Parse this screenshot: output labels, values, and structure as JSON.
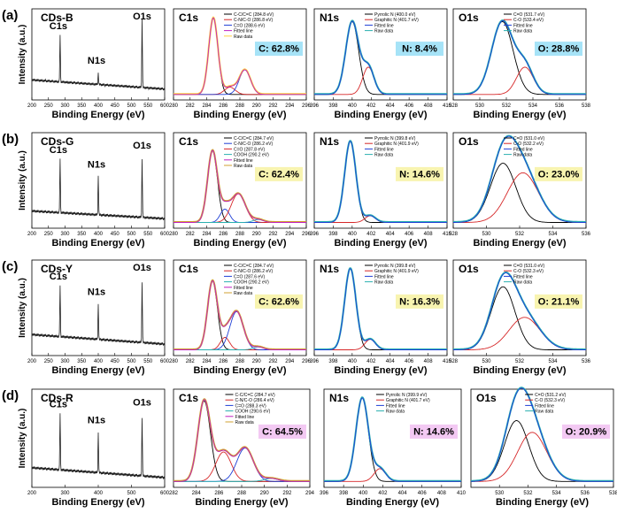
{
  "chart_data": [
    {
      "row_label": "(a)",
      "sample": "CDs-B",
      "accent": "#a6e3f7",
      "panels": [
        {
          "type": "line",
          "kind": "survey",
          "xlabel": "Binding Energy (eV)",
          "ylabel": "Intensity (a.u.)",
          "xlim": [
            200,
            600
          ],
          "xticks": [
            "200",
            "250",
            "300",
            "350",
            "400",
            "450",
            "500",
            "550",
            "600"
          ],
          "survey": {
            "base": [
              0.22,
              0.12
            ],
            "peaks": [
              {
                "center": 285,
                "height": 0.5,
                "label": "C1s"
              },
              {
                "center": 400,
                "height": 0.12,
                "label": "N1s"
              },
              {
                "center": 532,
                "height": 0.74,
                "label": "O1s"
              }
            ]
          }
        },
        {
          "type": "line",
          "kind": "fit",
          "title": "C1s",
          "xlabel": "Binding Energy (eV)",
          "xlim": [
            280,
            296
          ],
          "xticks": [
            "280",
            "282",
            "284",
            "286",
            "288",
            "290",
            "292",
            "294",
            "296"
          ],
          "series": [
            {
              "name": "C-C/C=C (284.8 eV)",
              "color": "#000000",
              "center": 284.8,
              "height": 0.84,
              "fwhm": 1.3
            },
            {
              "name": "C-N/C-O (286.8 eV)",
              "color": "#d62728",
              "center": 286.8,
              "height": 0.08,
              "fwhm": 1.5
            },
            {
              "name": "C=O (288.6 eV)",
              "color": "#1f3fd6",
              "center": 288.6,
              "height": 0.27,
              "fwhm": 1.6
            }
          ],
          "fitted_line": {
            "name": "Fitted line",
            "color": "#c020c0"
          },
          "raw_data": {
            "name": "Raw data",
            "color": "#ffd040"
          },
          "annotation": "C: 62.8%"
        },
        {
          "type": "line",
          "kind": "fit",
          "title": "N1s",
          "xlabel": "Binding Energy (eV)",
          "xlim": [
            396,
            410
          ],
          "xticks": [
            "396",
            "398",
            "400",
            "402",
            "404",
            "406",
            "408",
            "410"
          ],
          "series": [
            {
              "name": "Pyrrolic N (400.0 eV)",
              "color": "#000000",
              "center": 400.0,
              "height": 0.8,
              "fwhm": 1.6
            },
            {
              "name": "Graphitic N (401.7 eV)",
              "color": "#d62728",
              "center": 401.7,
              "height": 0.3,
              "fwhm": 1.4
            }
          ],
          "fitted_line": {
            "name": "Fitted line",
            "color": "#1f3fd6"
          },
          "raw_data": {
            "name": "Raw data",
            "color": "#2ab0b0"
          },
          "annotation": "N: 8.4%"
        },
        {
          "type": "line",
          "kind": "fit",
          "title": "O1s",
          "xlabel": "Binding Energy (eV)",
          "xlim": [
            528,
            538
          ],
          "xticks": [
            "528",
            "530",
            "532",
            "534",
            "536",
            "538"
          ],
          "series": [
            {
              "name": "C=O (531.7 eV)",
              "color": "#000000",
              "center": 531.7,
              "height": 0.8,
              "fwhm": 1.9
            },
            {
              "name": "C-O (533.4 eV)",
              "color": "#d62728",
              "center": 533.4,
              "height": 0.3,
              "fwhm": 1.5
            }
          ],
          "fitted_line": {
            "name": "Fitted line",
            "color": "#1f3fd6"
          },
          "raw_data": {
            "name": "Raw data",
            "color": "#2ab0b0"
          },
          "annotation": "O: 28.8%"
        }
      ]
    },
    {
      "row_label": "(b)",
      "sample": "CDs-G",
      "accent": "#f8f4b0",
      "panels": [
        {
          "type": "line",
          "kind": "survey",
          "xlabel": "Binding Energy (eV)",
          "ylabel": "Intensity (a.u.)",
          "xlim": [
            200,
            600
          ],
          "xticks": [
            "200",
            "250",
            "300",
            "350",
            "400",
            "450",
            "500",
            "550",
            "600"
          ],
          "survey": {
            "base": [
              0.18,
              0.1
            ],
            "peaks": [
              {
                "center": 285,
                "height": 0.55,
                "label": "C1s"
              },
              {
                "center": 400,
                "height": 0.4,
                "label": "N1s"
              },
              {
                "center": 532,
                "height": 0.6,
                "label": "O1s"
              }
            ]
          }
        },
        {
          "type": "line",
          "kind": "fit",
          "title": "C1s",
          "xlabel": "Binding Energy (eV)",
          "xlim": [
            280,
            296
          ],
          "xticks": [
            "280",
            "282",
            "284",
            "286",
            "288",
            "290",
            "292",
            "294",
            "296"
          ],
          "series": [
            {
              "name": "C-C/C=C (284.7 eV)",
              "color": "#000000",
              "center": 284.7,
              "height": 0.75,
              "fwhm": 1.4
            },
            {
              "name": "C-N/C-O (286.2 eV)",
              "color": "#1f3fd6",
              "center": 286.2,
              "height": 0.14,
              "fwhm": 1.3
            },
            {
              "name": "C=O (287.8 eV)",
              "color": "#d62728",
              "center": 287.8,
              "height": 0.3,
              "fwhm": 2.0
            },
            {
              "name": "COOH (290.2 eV)",
              "color": "#2ab0b0",
              "center": 290.2,
              "height": 0.03,
              "fwhm": 1.5
            }
          ],
          "fitted_line": {
            "name": "Fitted line",
            "color": "#c020c0"
          },
          "raw_data": {
            "name": "Raw data",
            "color": "#d0a030"
          },
          "annotation": "C: 62.4%"
        },
        {
          "type": "line",
          "kind": "fit",
          "title": "N1s",
          "xlabel": "Binding Energy (eV)",
          "xlim": [
            396,
            410
          ],
          "xticks": [
            "396",
            "398",
            "400",
            "402",
            "404",
            "406",
            "408",
            "410"
          ],
          "series": [
            {
              "name": "Pyrrolic N (399.8 eV)",
              "color": "#000000",
              "center": 399.8,
              "height": 0.85,
              "fwhm": 1.4
            },
            {
              "name": "Graphitic N (401.9 eV)",
              "color": "#d62728",
              "center": 401.9,
              "height": 0.07,
              "fwhm": 1.3
            }
          ],
          "fitted_line": {
            "name": "Fitted line",
            "color": "#1f3fd6"
          },
          "raw_data": {
            "name": "Raw data",
            "color": "#2ab0b0"
          },
          "annotation": "N: 14.6%"
        },
        {
          "type": "line",
          "kind": "fit",
          "title": "O1s",
          "xlabel": "Binding Energy (eV)",
          "xlim": [
            528,
            536
          ],
          "xticks": [
            "528",
            "530",
            "532",
            "534",
            "536"
          ],
          "series": [
            {
              "name": "C=O (531.0 eV)",
              "color": "#000000",
              "center": 531.0,
              "height": 0.62,
              "fwhm": 1.8
            },
            {
              "name": "C-O (532.2 eV)",
              "color": "#d62728",
              "center": 532.2,
              "height": 0.52,
              "fwhm": 2.2
            }
          ],
          "fitted_line": {
            "name": "Fitted line",
            "color": "#1f3fd6"
          },
          "raw_data": {
            "name": "Raw data",
            "color": "#2ab0b0"
          },
          "annotation": "O: 23.0%"
        }
      ]
    },
    {
      "row_label": "(c)",
      "sample": "CDs-Y",
      "accent": "#f8f4b0",
      "panels": [
        {
          "type": "line",
          "kind": "survey",
          "xlabel": "Binding Energy (eV)",
          "ylabel": "Intensity (a.u.)",
          "xlim": [
            200,
            600
          ],
          "xticks": [
            "200",
            "250",
            "300",
            "350",
            "400",
            "450",
            "500",
            "550",
            "600"
          ],
          "survey": {
            "base": [
              0.22,
              0.12
            ],
            "peaks": [
              {
                "center": 285,
                "height": 0.52,
                "label": "C1s"
              },
              {
                "center": 400,
                "height": 0.36,
                "label": "N1s"
              },
              {
                "center": 532,
                "height": 0.62,
                "label": "O1s"
              }
            ]
          }
        },
        {
          "type": "line",
          "kind": "fit",
          "title": "C1s",
          "xlabel": "Binding Energy (eV)",
          "xlim": [
            280,
            296
          ],
          "xticks": [
            "280",
            "282",
            "284",
            "286",
            "288",
            "290",
            "292",
            "294",
            "296"
          ],
          "series": [
            {
              "name": "C-C/C=C (284.7 eV)",
              "color": "#000000",
              "center": 284.7,
              "height": 0.72,
              "fwhm": 1.4
            },
            {
              "name": "C-N/C-O (286.2 eV)",
              "color": "#d62728",
              "center": 286.2,
              "height": 0.13,
              "fwhm": 1.3
            },
            {
              "name": "C=O (287.6 eV)",
              "color": "#1f3fd6",
              "center": 287.6,
              "height": 0.4,
              "fwhm": 1.9
            },
            {
              "name": "COOH (290.2 eV)",
              "color": "#2ab0b0",
              "center": 290.2,
              "height": 0.03,
              "fwhm": 1.5
            }
          ],
          "fitted_line": {
            "name": "Fitted line",
            "color": "#c020c0"
          },
          "raw_data": {
            "name": "Raw data",
            "color": "#d0a030"
          },
          "annotation": "C: 62.6%"
        },
        {
          "type": "line",
          "kind": "fit",
          "title": "N1s",
          "xlabel": "Binding Energy (eV)",
          "xlim": [
            396,
            410
          ],
          "xticks": [
            "396",
            "398",
            "400",
            "402",
            "404",
            "406",
            "408",
            "410"
          ],
          "series": [
            {
              "name": "Pyrrolic N (399.8 eV)",
              "color": "#000000",
              "center": 399.8,
              "height": 0.85,
              "fwhm": 1.4
            },
            {
              "name": "Graphitic N (401.9 eV)",
              "color": "#d62728",
              "center": 401.9,
              "height": 0.11,
              "fwhm": 1.3
            }
          ],
          "fitted_line": {
            "name": "Fitted line",
            "color": "#1f3fd6"
          },
          "raw_data": {
            "name": "Raw data",
            "color": "#2ab0b0"
          },
          "annotation": "N: 16.3%"
        },
        {
          "type": "line",
          "kind": "fit",
          "title": "O1s",
          "xlabel": "Binding Energy (eV)",
          "xlim": [
            528,
            536
          ],
          "xticks": [
            "528",
            "530",
            "532",
            "534",
            "536"
          ],
          "series": [
            {
              "name": "C=O (531.0 eV)",
              "color": "#000000",
              "center": 531.0,
              "height": 0.66,
              "fwhm": 1.7
            },
            {
              "name": "C-O (532.3 eV)",
              "color": "#d62728",
              "center": 532.3,
              "height": 0.34,
              "fwhm": 2.2
            }
          ],
          "fitted_line": {
            "name": "Fitted line",
            "color": "#1f3fd6"
          },
          "raw_data": {
            "name": "Raw data",
            "color": "#2ab0b0"
          },
          "annotation": "O: 21.1%"
        }
      ]
    },
    {
      "row_label": "(d)",
      "sample": "CDs-R",
      "accent": "#f3c9f3",
      "panels": [
        {
          "type": "line",
          "kind": "survey",
          "xlabel": "Binding Energy (eV)",
          "ylabel": "Intensity (a.u.)",
          "xlim": [
            200,
            600
          ],
          "xticks": [
            "200",
            "300",
            "400",
            "500",
            "600"
          ],
          "survey": {
            "base": [
              0.2,
              0.1
            ],
            "peaks": [
              {
                "center": 285,
                "height": 0.56,
                "label": "C1s"
              },
              {
                "center": 400,
                "height": 0.4,
                "label": "N1s"
              },
              {
                "center": 532,
                "height": 0.58,
                "label": "O1s"
              }
            ]
          }
        },
        {
          "type": "line",
          "kind": "fit",
          "title": "C1s",
          "xlabel": "Binding Energy (eV)",
          "xlim": [
            282,
            294
          ],
          "xticks": [
            "282",
            "284",
            "286",
            "288",
            "290",
            "292",
            "294"
          ],
          "series": [
            {
              "name": "C-C/C=C (284.7 eV)",
              "color": "#000000",
              "center": 284.7,
              "height": 0.82,
              "fwhm": 1.3
            },
            {
              "name": "C-N/C-O (286.4 eV)",
              "color": "#d62728",
              "center": 286.4,
              "height": 0.3,
              "fwhm": 1.6
            },
            {
              "name": "C=O (288.3 eV)",
              "color": "#1f3fd6",
              "center": 288.3,
              "height": 0.34,
              "fwhm": 1.7
            },
            {
              "name": "COOH (290.6 eV)",
              "color": "#2ab0b0",
              "center": 290.6,
              "height": 0.03,
              "fwhm": 1.5
            }
          ],
          "fitted_line": {
            "name": "Fitted line",
            "color": "#c020c0"
          },
          "raw_data": {
            "name": "Raw data",
            "color": "#d0a030"
          },
          "annotation": "C: 64.5%"
        },
        {
          "type": "line",
          "kind": "fit",
          "title": "N1s",
          "xlabel": "Binding Energy (eV)",
          "xlim": [
            396,
            410
          ],
          "xticks": [
            "396",
            "398",
            "400",
            "402",
            "404",
            "406",
            "408",
            "410"
          ],
          "series": [
            {
              "name": "Pyrrolic N (399.9 eV)",
              "color": "#000000",
              "center": 399.9,
              "height": 0.85,
              "fwhm": 1.5
            },
            {
              "name": "Graphitic N (401.7 eV)",
              "color": "#d62728",
              "center": 401.7,
              "height": 0.13,
              "fwhm": 1.4
            }
          ],
          "fitted_line": {
            "name": "Fitted line",
            "color": "#1f3fd6"
          },
          "raw_data": {
            "name": "Raw data",
            "color": "#2ab0b0"
          },
          "annotation": "N: 14.6%"
        },
        {
          "type": "line",
          "kind": "fit",
          "title": "O1s",
          "xlabel": "Binding Energy (eV)",
          "xlim": [
            528,
            538
          ],
          "xticks": [
            "530",
            "532",
            "534",
            "536",
            "538"
          ],
          "series": [
            {
              "name": "C=O (531.2 eV)",
              "color": "#000000",
              "center": 531.2,
              "height": 0.62,
              "fwhm": 2.0
            },
            {
              "name": "C-O (532.3 eV)",
              "color": "#d62728",
              "center": 532.3,
              "height": 0.5,
              "fwhm": 2.4
            }
          ],
          "fitted_line": {
            "name": "Fitted line",
            "color": "#1f3fd6"
          },
          "raw_data": {
            "name": "Raw data",
            "color": "#2ab0b0"
          },
          "annotation": "O: 20.9%"
        }
      ]
    }
  ]
}
